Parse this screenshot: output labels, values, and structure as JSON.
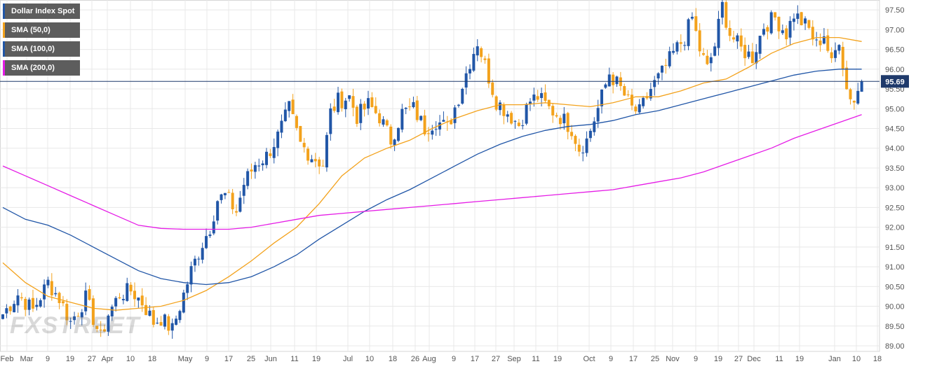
{
  "colors": {
    "bull": "#2156a7",
    "bear": "#f3a21c",
    "sma50": "#f3a21c",
    "sma100": "#2156a7",
    "sma200": "#e51ce6",
    "grid": "#e8e8e8",
    "price_line": "#1f3a6b",
    "price_tag": "#1f3a6b"
  },
  "legend": [
    {
      "label": "Dollar Index Spot",
      "color": "#2156a7"
    },
    {
      "label": "SMA (50,0)",
      "color": "#f3a21c"
    },
    {
      "label": "SMA (100,0)",
      "color": "#2156a7"
    },
    {
      "label": "SMA (200,0)",
      "color": "#e51ce6"
    }
  ],
  "watermark": "FXSTREET",
  "chart_data": {
    "type": "candlestick",
    "title": "Dollar Index Spot",
    "ylim": [
      89.0,
      97.75
    ],
    "y_ticks": [
      "89.00",
      "89.50",
      "90.00",
      "90.50",
      "91.00",
      "91.50",
      "92.00",
      "92.50",
      "93.00",
      "93.50",
      "94.00",
      "94.50",
      "95.00",
      "95.50",
      "96.00",
      "96.50",
      "97.00",
      "97.50"
    ],
    "x_ticks": [
      "Feb",
      "Mar",
      "9",
      "19",
      "27",
      "Apr",
      "10",
      "18",
      "May",
      "9",
      "17",
      "25",
      "Jun",
      "11",
      "19",
      "Jul",
      "10",
      "18",
      "26",
      "Aug",
      "9",
      "17",
      "27",
      "Sep",
      "11",
      "19",
      "Oct",
      "9",
      "17",
      "25",
      "Nov",
      "9",
      "19",
      "27",
      "Dec",
      "11",
      "19",
      "Jan",
      "10",
      "18"
    ],
    "current_price": "95.69",
    "grid": true,
    "legend_position": "top-left",
    "series": [
      {
        "name": "Dollar Index Spot",
        "kind": "candlestick",
        "close_path": [
          [
            0,
            89.8
          ],
          [
            4,
            90.3
          ],
          [
            8,
            89.9
          ],
          [
            12,
            90.6
          ],
          [
            15,
            90.2
          ],
          [
            18,
            89.6
          ],
          [
            22,
            90.2
          ],
          [
            26,
            89.2
          ],
          [
            28,
            89.8
          ],
          [
            31,
            90.3
          ],
          [
            34,
            90.4
          ],
          [
            37,
            90.1
          ],
          [
            40,
            89.6
          ],
          [
            42,
            89.7
          ],
          [
            45,
            89.4
          ],
          [
            48,
            90.3
          ],
          [
            50,
            90.9
          ],
          [
            53,
            91.6
          ],
          [
            55,
            92.0
          ],
          [
            57,
            92.7
          ],
          [
            59,
            92.8
          ],
          [
            62,
            92.4
          ],
          [
            64,
            93.1
          ],
          [
            67,
            93.6
          ],
          [
            70,
            93.8
          ],
          [
            73,
            94.3
          ],
          [
            76,
            95.0
          ],
          [
            79,
            94.1
          ],
          [
            82,
            93.8
          ],
          [
            85,
            93.6
          ],
          [
            87,
            94.9
          ],
          [
            89,
            95.2
          ],
          [
            92,
            95.3
          ],
          [
            94,
            94.8
          ],
          [
            97,
            95.1
          ],
          [
            100,
            94.8
          ],
          [
            103,
            94.2
          ],
          [
            106,
            94.9
          ],
          [
            109,
            95.0
          ],
          [
            112,
            94.5
          ],
          [
            115,
            94.7
          ],
          [
            118,
            94.5
          ],
          [
            121,
            95.3
          ],
          [
            124,
            96.2
          ],
          [
            126,
            96.7
          ],
          [
            128,
            96.1
          ],
          [
            131,
            95.2
          ],
          [
            134,
            94.9
          ],
          [
            137,
            94.6
          ],
          [
            140,
            95.2
          ],
          [
            142,
            95.3
          ],
          [
            145,
            95.0
          ],
          [
            148,
            94.8
          ],
          [
            151,
            94.5
          ],
          [
            153,
            94.0
          ],
          [
            155,
            94.2
          ],
          [
            158,
            95.0
          ],
          [
            161,
            95.9
          ],
          [
            164,
            95.5
          ],
          [
            167,
            95.0
          ],
          [
            169,
            94.9
          ],
          [
            172,
            95.5
          ],
          [
            175,
            95.9
          ],
          [
            178,
            96.4
          ],
          [
            181,
            96.8
          ],
          [
            183,
            97.3
          ],
          [
            185,
            96.5
          ],
          [
            187,
            96.0
          ],
          [
            189,
            96.6
          ],
          [
            191,
            97.6
          ],
          [
            193,
            96.9
          ],
          [
            196,
            96.5
          ],
          [
            199,
            96.3
          ],
          [
            202,
            97.1
          ],
          [
            205,
            97.3
          ],
          [
            208,
            96.9
          ],
          [
            210,
            97.4
          ],
          [
            212,
            97.2
          ],
          [
            214,
            97.0
          ],
          [
            216,
            96.6
          ],
          [
            218,
            96.9
          ],
          [
            220,
            96.1
          ],
          [
            222,
            96.8
          ],
          [
            224,
            95.5
          ],
          [
            226,
            95.2
          ],
          [
            228,
            95.69
          ]
        ]
      },
      {
        "name": "SMA (50,0)",
        "kind": "line",
        "points": [
          [
            0,
            91.1
          ],
          [
            6,
            90.6
          ],
          [
            12,
            90.25
          ],
          [
            18,
            90.1
          ],
          [
            24,
            89.95
          ],
          [
            30,
            89.9
          ],
          [
            36,
            89.95
          ],
          [
            42,
            90.0
          ],
          [
            48,
            90.15
          ],
          [
            54,
            90.4
          ],
          [
            60,
            90.75
          ],
          [
            66,
            91.15
          ],
          [
            72,
            91.6
          ],
          [
            78,
            92.0
          ],
          [
            84,
            92.6
          ],
          [
            90,
            93.3
          ],
          [
            96,
            93.75
          ],
          [
            102,
            94.0
          ],
          [
            108,
            94.2
          ],
          [
            114,
            94.5
          ],
          [
            120,
            94.75
          ],
          [
            126,
            94.95
          ],
          [
            132,
            95.1
          ],
          [
            138,
            95.1
          ],
          [
            144,
            95.15
          ],
          [
            150,
            95.1
          ],
          [
            156,
            95.05
          ],
          [
            162,
            95.15
          ],
          [
            168,
            95.3
          ],
          [
            174,
            95.3
          ],
          [
            180,
            95.45
          ],
          [
            186,
            95.65
          ],
          [
            192,
            95.75
          ],
          [
            198,
            96.05
          ],
          [
            204,
            96.4
          ],
          [
            210,
            96.65
          ],
          [
            216,
            96.8
          ],
          [
            222,
            96.8
          ],
          [
            228,
            96.7
          ]
        ]
      },
      {
        "name": "SMA (100,0)",
        "kind": "line",
        "points": [
          [
            0,
            92.5
          ],
          [
            6,
            92.2
          ],
          [
            12,
            92.05
          ],
          [
            18,
            91.8
          ],
          [
            24,
            91.5
          ],
          [
            30,
            91.2
          ],
          [
            36,
            90.9
          ],
          [
            42,
            90.7
          ],
          [
            48,
            90.6
          ],
          [
            54,
            90.55
          ],
          [
            60,
            90.6
          ],
          [
            66,
            90.75
          ],
          [
            72,
            91.0
          ],
          [
            78,
            91.3
          ],
          [
            84,
            91.7
          ],
          [
            90,
            92.05
          ],
          [
            96,
            92.4
          ],
          [
            102,
            92.7
          ],
          [
            108,
            92.95
          ],
          [
            114,
            93.25
          ],
          [
            120,
            93.55
          ],
          [
            126,
            93.85
          ],
          [
            132,
            94.1
          ],
          [
            138,
            94.3
          ],
          [
            144,
            94.45
          ],
          [
            150,
            94.55
          ],
          [
            156,
            94.6
          ],
          [
            162,
            94.7
          ],
          [
            168,
            94.85
          ],
          [
            174,
            94.95
          ],
          [
            180,
            95.1
          ],
          [
            186,
            95.25
          ],
          [
            192,
            95.4
          ],
          [
            198,
            95.55
          ],
          [
            204,
            95.7
          ],
          [
            210,
            95.85
          ],
          [
            216,
            95.95
          ],
          [
            222,
            96.0
          ],
          [
            228,
            96.0
          ]
        ]
      },
      {
        "name": "SMA (200,0)",
        "kind": "line",
        "points": [
          [
            0,
            93.55
          ],
          [
            6,
            93.3
          ],
          [
            12,
            93.05
          ],
          [
            18,
            92.8
          ],
          [
            24,
            92.55
          ],
          [
            30,
            92.3
          ],
          [
            36,
            92.05
          ],
          [
            42,
            91.97
          ],
          [
            48,
            91.95
          ],
          [
            54,
            91.95
          ],
          [
            60,
            91.95
          ],
          [
            66,
            92.0
          ],
          [
            72,
            92.1
          ],
          [
            78,
            92.2
          ],
          [
            84,
            92.3
          ],
          [
            90,
            92.35
          ],
          [
            96,
            92.4
          ],
          [
            102,
            92.45
          ],
          [
            108,
            92.5
          ],
          [
            114,
            92.55
          ],
          [
            120,
            92.6
          ],
          [
            126,
            92.65
          ],
          [
            132,
            92.7
          ],
          [
            138,
            92.75
          ],
          [
            144,
            92.8
          ],
          [
            150,
            92.85
          ],
          [
            156,
            92.9
          ],
          [
            162,
            92.95
          ],
          [
            168,
            93.05
          ],
          [
            174,
            93.15
          ],
          [
            180,
            93.25
          ],
          [
            186,
            93.4
          ],
          [
            192,
            93.6
          ],
          [
            198,
            93.8
          ],
          [
            204,
            94.0
          ],
          [
            210,
            94.25
          ],
          [
            216,
            94.45
          ],
          [
            222,
            94.65
          ],
          [
            228,
            94.85
          ]
        ]
      }
    ]
  }
}
